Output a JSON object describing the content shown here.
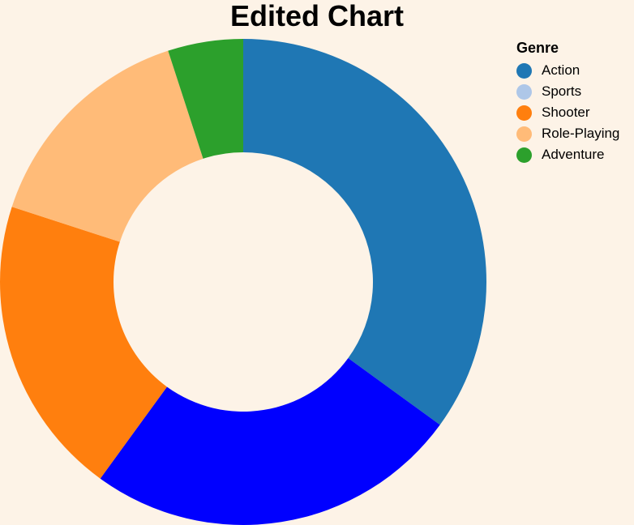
{
  "chart_data": {
    "type": "pie",
    "variant": "donut",
    "title": "Edited Chart",
    "legend": {
      "title": "Genre",
      "placement": "top-right"
    },
    "categories": [
      "Action",
      "Sports",
      "Shooter",
      "Role-Playing",
      "Adventure"
    ],
    "values": [
      35,
      25,
      20,
      15,
      5
    ],
    "colors": [
      "#1f77b4",
      "#0000ff",
      "#ff7f0e",
      "#ffbb78",
      "#2ca02c"
    ],
    "legend_colors": [
      "#1f77b4",
      "#aec7e8",
      "#ff7f0e",
      "#ffbb78",
      "#2ca02c"
    ]
  }
}
